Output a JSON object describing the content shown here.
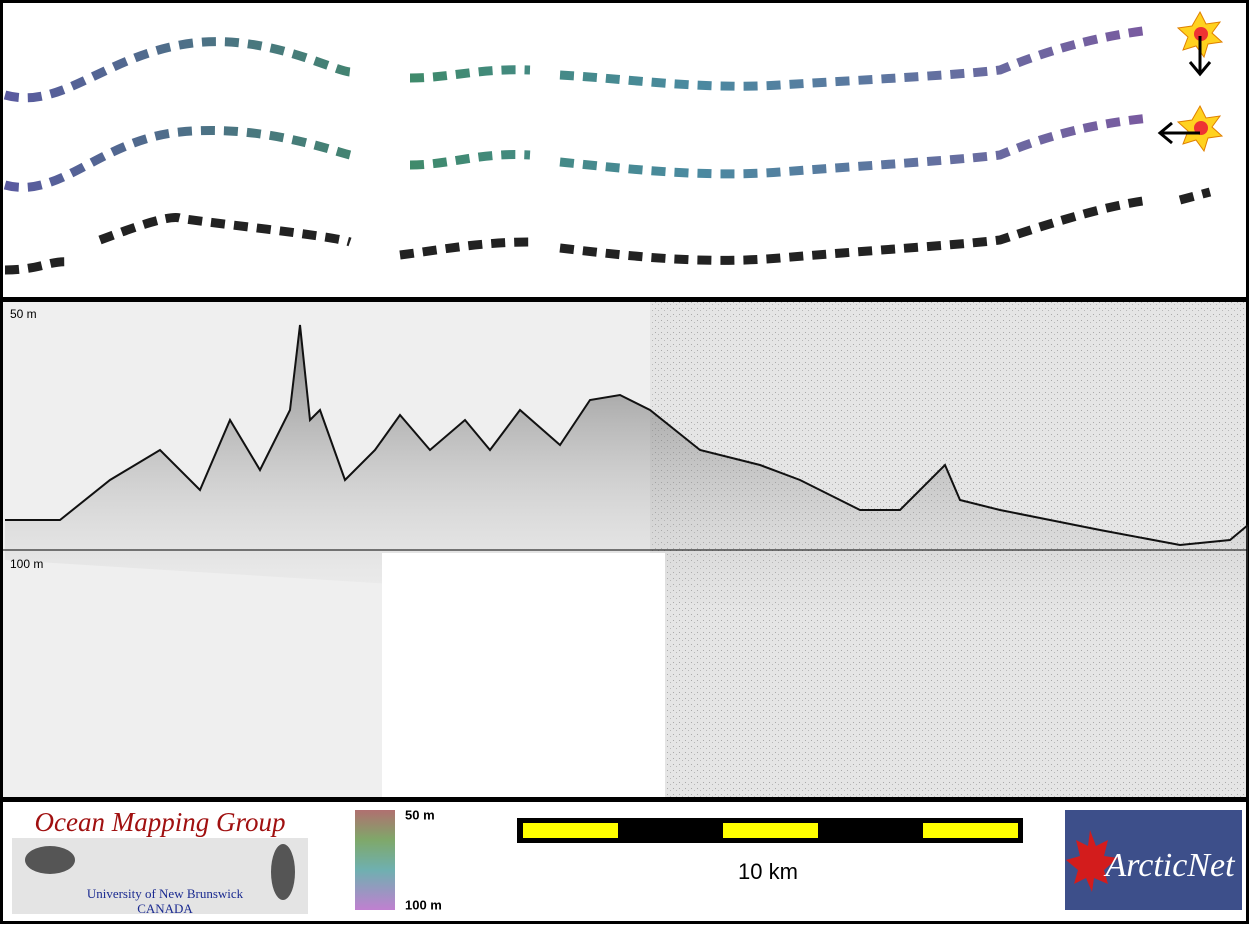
{
  "profile": {
    "top_label": "50 m",
    "bottom_label": "100 m"
  },
  "footer": {
    "logo_title": "Ocean Mapping Group",
    "university": "University of New Brunswick",
    "country": "CANADA",
    "colorbar_top": "50 m",
    "colorbar_bottom": "100 m",
    "scale_label": "10 km",
    "partner": "ArcticNet"
  }
}
